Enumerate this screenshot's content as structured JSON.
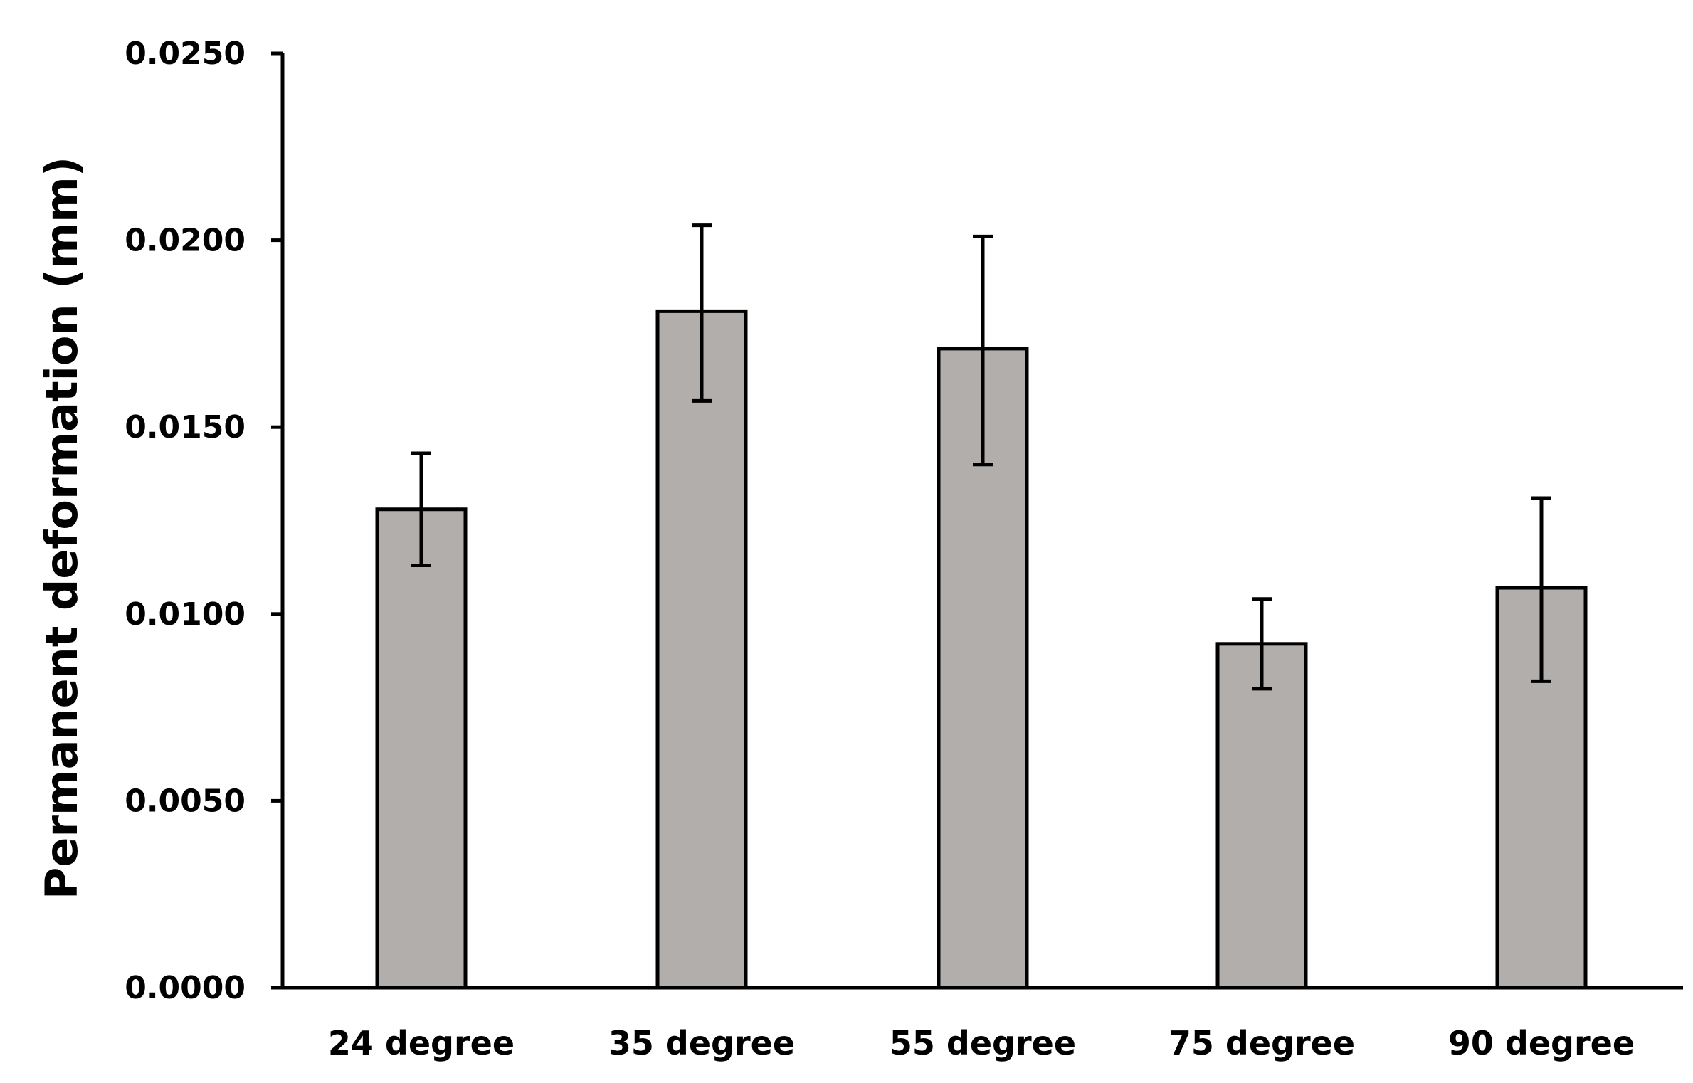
{
  "chart_data": {
    "type": "bar",
    "title": "",
    "xlabel": "",
    "ylabel": "Permanent deformation (mm)",
    "categories": [
      "24 degree",
      "35 degree",
      "55 degree",
      "75 degree",
      "90 degree"
    ],
    "values": [
      0.0128,
      0.0181,
      0.0171,
      0.0092,
      0.0107
    ],
    "error_low": [
      0.0015,
      0.0024,
      0.0031,
      0.0012,
      0.0025
    ],
    "error_high": [
      0.0015,
      0.0023,
      0.003,
      0.0012,
      0.0024
    ],
    "ylim": [
      0,
      0.025
    ],
    "yticks": [
      0,
      0.005,
      0.01,
      0.015,
      0.02,
      0.025
    ],
    "ytick_labels": [
      "0.0000",
      "0.0050",
      "0.0100",
      "0.0150",
      "0.0200",
      "0.0250"
    ],
    "grid": false,
    "legend": "none",
    "bar_color": "#b1aeac",
    "edge_color": "#000000",
    "axis_color": "#000000"
  }
}
